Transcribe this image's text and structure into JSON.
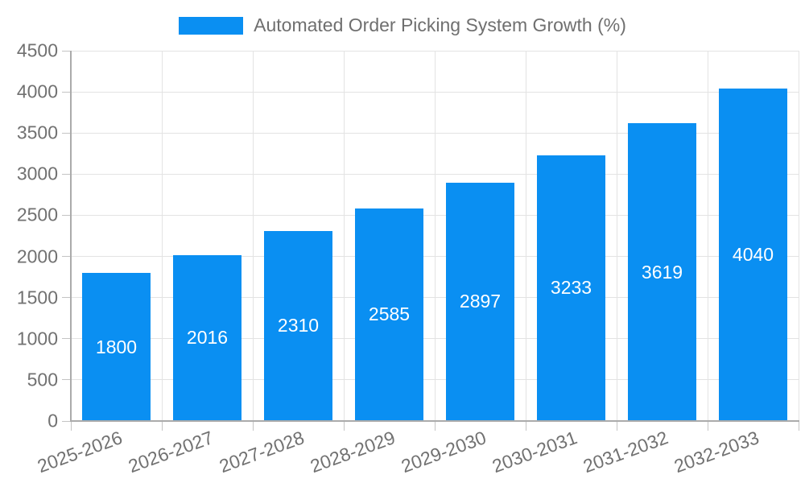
{
  "chart_data": {
    "type": "bar",
    "legend": "Automated Order Picking System Growth (%)",
    "legend_position": "top-center",
    "categories": [
      "2025-2026",
      "2026-2027",
      "2027-2028",
      "2028-2029",
      "2029-2030",
      "2030-2031",
      "2031-2032",
      "2032-2033"
    ],
    "values": [
      1800,
      2016,
      2310,
      2585,
      2897,
      3233,
      3619,
      4040
    ],
    "value_labels_inside_bars": true,
    "xlabel": "",
    "ylabel": "",
    "ylim": [
      0,
      4500
    ],
    "yticks": [
      0,
      500,
      1000,
      1500,
      2000,
      2500,
      3000,
      3500,
      4000,
      4500
    ],
    "grid": true,
    "x_label_rotation_deg": -20,
    "colors": {
      "bar": "#0a8ff2",
      "bar_value_label": "#ffffff",
      "tick_label": "#717171",
      "legend_label": "#6f6f6f",
      "gridline": "#e3e3e3",
      "tick_mark": "#c4c4c4",
      "axis_spine": "#ababab",
      "background": "#ffffff"
    }
  }
}
